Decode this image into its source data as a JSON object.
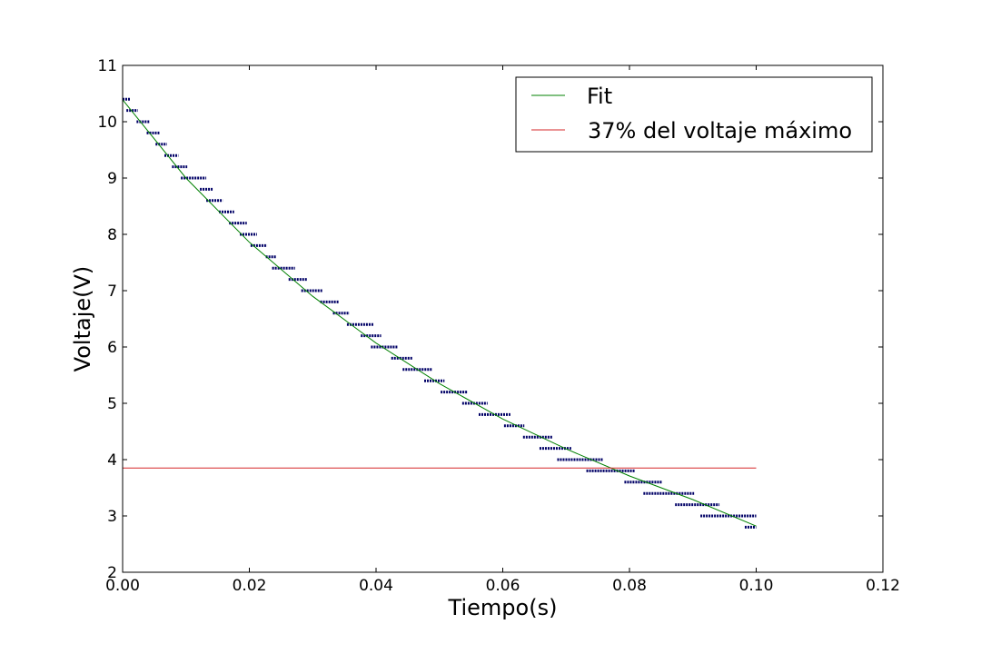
{
  "chart_data": {
    "type": "scatter",
    "title": "",
    "xlabel": "Tiempo(s)",
    "ylabel": "Voltaje(V)",
    "xlim": [
      0.0,
      0.12
    ],
    "ylim": [
      2,
      11
    ],
    "grid": false,
    "legend_placement": "top-right",
    "x_ticks": [
      "0.00",
      "0.02",
      "0.04",
      "0.06",
      "0.08",
      "0.10",
      "0.12"
    ],
    "y_ticks": [
      "2",
      "3",
      "4",
      "5",
      "6",
      "7",
      "8",
      "9",
      "10",
      "11"
    ],
    "series": [
      {
        "name": "Fit",
        "kind": "line",
        "color": "#008000",
        "x": [
          0.0,
          0.01,
          0.02,
          0.03,
          0.04,
          0.05,
          0.06,
          0.07,
          0.08,
          0.09,
          0.1
        ],
        "y": [
          10.39,
          9.0,
          7.86,
          6.9,
          6.07,
          5.35,
          4.72,
          4.19,
          3.71,
          3.29,
          2.82
        ]
      },
      {
        "name": "37% del voltaje máximo",
        "kind": "line",
        "color": "#d62728",
        "x": [
          0.0,
          0.1
        ],
        "y": [
          3.85,
          3.85
        ]
      },
      {
        "kind": "steps",
        "color": "#000066",
        "steps": [
          {
            "y": 10.4,
            "x0": 0.0,
            "x1": 0.0012
          },
          {
            "y": 10.2,
            "x0": 0.0006,
            "x1": 0.0024
          },
          {
            "y": 10.0,
            "x0": 0.0022,
            "x1": 0.0042
          },
          {
            "y": 9.8,
            "x0": 0.0038,
            "x1": 0.0058
          },
          {
            "y": 9.6,
            "x0": 0.0052,
            "x1": 0.007
          },
          {
            "y": 9.4,
            "x0": 0.0066,
            "x1": 0.0088
          },
          {
            "y": 9.2,
            "x0": 0.0078,
            "x1": 0.0102
          },
          {
            "y": 9.0,
            "x0": 0.0092,
            "x1": 0.0132
          },
          {
            "y": 8.8,
            "x0": 0.0122,
            "x1": 0.0142
          },
          {
            "y": 8.6,
            "x0": 0.0132,
            "x1": 0.0158
          },
          {
            "y": 8.4,
            "x0": 0.0152,
            "x1": 0.0176
          },
          {
            "y": 8.2,
            "x0": 0.0168,
            "x1": 0.0196
          },
          {
            "y": 8.0,
            "x0": 0.0185,
            "x1": 0.0212
          },
          {
            "y": 7.8,
            "x0": 0.0202,
            "x1": 0.0228
          },
          {
            "y": 7.6,
            "x0": 0.0226,
            "x1": 0.0242
          },
          {
            "y": 7.4,
            "x0": 0.0236,
            "x1": 0.0272
          },
          {
            "y": 7.2,
            "x0": 0.0262,
            "x1": 0.0292
          },
          {
            "y": 7.0,
            "x0": 0.0282,
            "x1": 0.0316
          },
          {
            "y": 6.8,
            "x0": 0.0312,
            "x1": 0.0342
          },
          {
            "y": 6.6,
            "x0": 0.0332,
            "x1": 0.0358
          },
          {
            "y": 6.4,
            "x0": 0.0354,
            "x1": 0.0396
          },
          {
            "y": 6.2,
            "x0": 0.0376,
            "x1": 0.0408
          },
          {
            "y": 6.0,
            "x0": 0.0392,
            "x1": 0.0434
          },
          {
            "y": 5.8,
            "x0": 0.0424,
            "x1": 0.0458
          },
          {
            "y": 5.6,
            "x0": 0.0442,
            "x1": 0.0488
          },
          {
            "y": 5.4,
            "x0": 0.0476,
            "x1": 0.0508
          },
          {
            "y": 5.2,
            "x0": 0.0502,
            "x1": 0.0544
          },
          {
            "y": 5.0,
            "x0": 0.0536,
            "x1": 0.0576
          },
          {
            "y": 4.8,
            "x0": 0.0562,
            "x1": 0.0612
          },
          {
            "y": 4.6,
            "x0": 0.0602,
            "x1": 0.0634
          },
          {
            "y": 4.4,
            "x0": 0.0632,
            "x1": 0.0678
          },
          {
            "y": 4.2,
            "x0": 0.0658,
            "x1": 0.0708
          },
          {
            "y": 4.0,
            "x0": 0.0686,
            "x1": 0.0758
          },
          {
            "y": 3.8,
            "x0": 0.0732,
            "x1": 0.0808
          },
          {
            "y": 3.6,
            "x0": 0.0792,
            "x1": 0.0852
          },
          {
            "y": 3.4,
            "x0": 0.0822,
            "x1": 0.0902
          },
          {
            "y": 3.2,
            "x0": 0.0872,
            "x1": 0.0942
          },
          {
            "y": 3.0,
            "x0": 0.0912,
            "x1": 0.1
          },
          {
            "y": 2.8,
            "x0": 0.0982,
            "x1": 0.1
          }
        ]
      }
    ]
  }
}
